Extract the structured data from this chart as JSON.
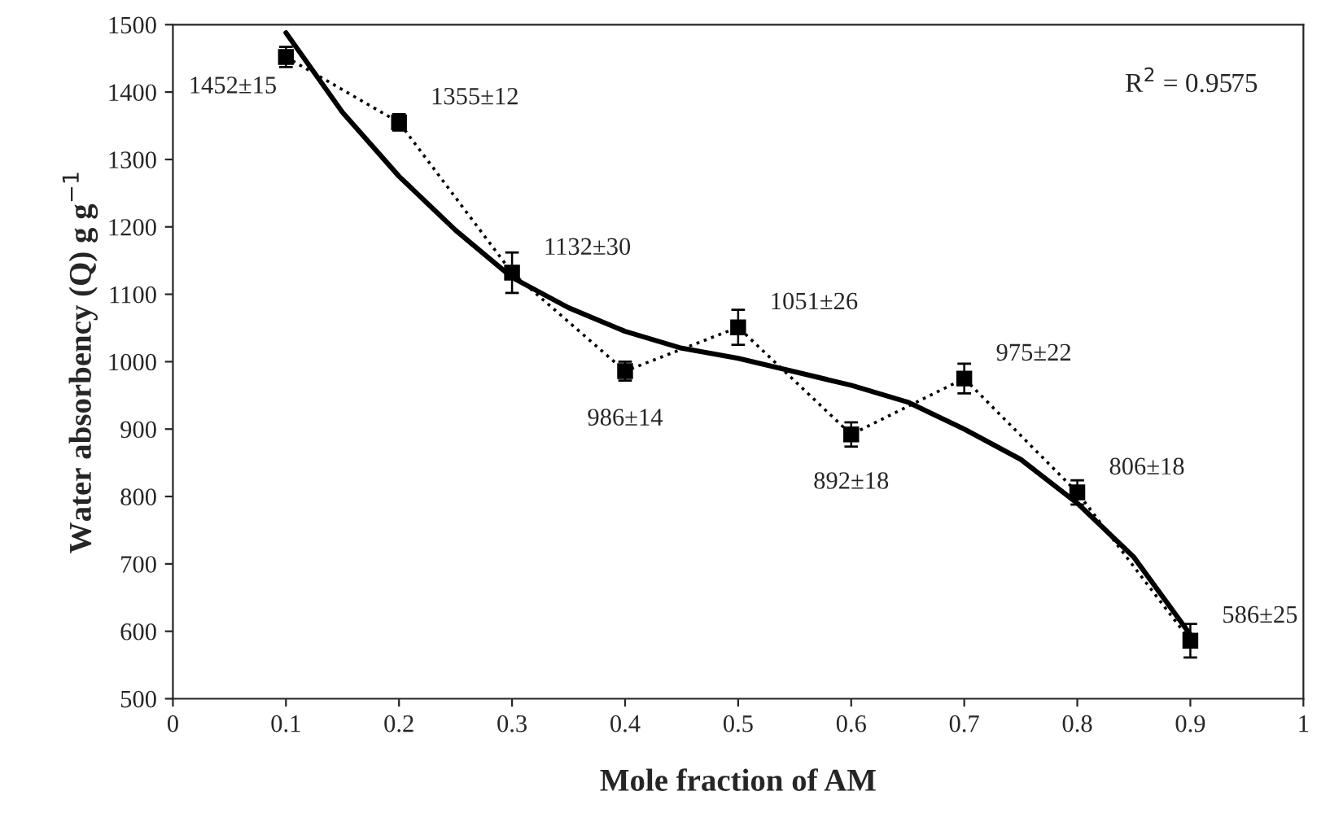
{
  "chart_data": {
    "type": "line",
    "xlabel": "Mole fraction of AM",
    "ylabel": "Water absorbency (Q) g g$^{−1}$",
    "xlim": [
      0,
      1
    ],
    "xticks": [
      0,
      0.1,
      0.2,
      0.3,
      0.4,
      0.5,
      0.6,
      0.7,
      0.8,
      0.9,
      1
    ],
    "ylim": [
      500,
      1500
    ],
    "yticks": [
      500,
      600,
      700,
      800,
      900,
      1000,
      1100,
      1200,
      1300,
      1400,
      1500
    ],
    "grid": false,
    "legend": false,
    "series": [
      {
        "color": "#000000",
        "marker": "square",
        "line_style": "dotted",
        "x": [
          0.1,
          0.2,
          0.3,
          0.4,
          0.5,
          0.6,
          0.7,
          0.8,
          0.9
        ],
        "values": [
          1452,
          1355,
          1132,
          986,
          1051,
          892,
          975,
          806,
          586
        ],
        "errors": [
          15,
          12,
          30,
          14,
          26,
          18,
          22,
          18,
          25
        ],
        "value_labels": [
          "1452±15",
          "1355±12",
          "1132±30",
          "986±14",
          "1051±26",
          "892±18",
          "975±22",
          "806±18",
          "586±25"
        ]
      },
      {
        "color": "#000000",
        "marker": "none",
        "line_style": "solid",
        "x": [
          0.1,
          0.15,
          0.2,
          0.25,
          0.3,
          0.35,
          0.4,
          0.45,
          0.5,
          0.55,
          0.6,
          0.65,
          0.7,
          0.75,
          0.8,
          0.85,
          0.9
        ],
        "values": [
          1488,
          1370,
          1275,
          1195,
          1125,
          1080,
          1045,
          1020,
          1005,
          985,
          965,
          940,
          900,
          855,
          790,
          710,
          595
        ]
      }
    ],
    "annotations": [
      "R$^{2}$ = 0.9575"
    ]
  }
}
